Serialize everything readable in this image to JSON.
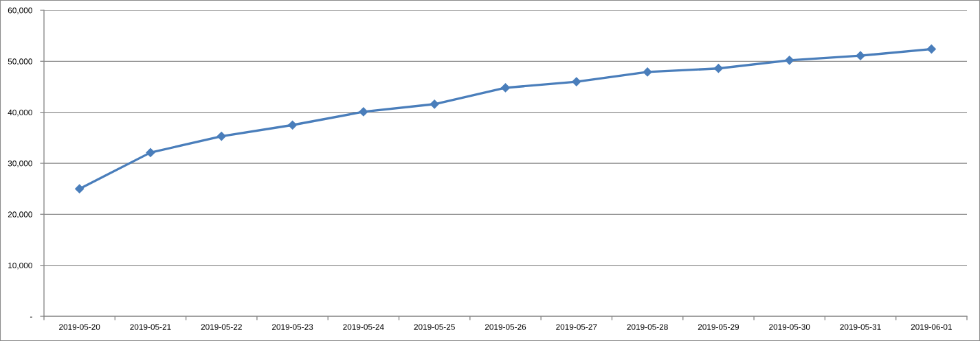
{
  "chart_data": {
    "type": "line",
    "categories": [
      "2019-05-20",
      "2019-05-21",
      "2019-05-22",
      "2019-05-23",
      "2019-05-24",
      "2019-05-25",
      "2019-05-26",
      "2019-05-27",
      "2019-05-28",
      "2019-05-29",
      "2019-05-30",
      "2019-05-31",
      "2019-06-01"
    ],
    "series": [
      {
        "color": "#4a7ebb",
        "values": [
          25000,
          32100,
          35300,
          37500,
          40100,
          41600,
          44800,
          46000,
          47900,
          48600,
          50200,
          51100,
          52400
        ]
      }
    ],
    "ylim": [
      0,
      60000
    ],
    "yticks": [
      {
        "value": 0,
        "label": "-"
      },
      {
        "value": 10000,
        "label": "10,000"
      },
      {
        "value": 20000,
        "label": "20,000"
      },
      {
        "value": 30000,
        "label": "30,000"
      },
      {
        "value": 40000,
        "label": "40,000"
      },
      {
        "value": 50000,
        "label": "50,000"
      },
      {
        "value": 60000,
        "label": "60,000"
      }
    ],
    "grid": "y",
    "marker": "diamond",
    "line_style": "solid"
  }
}
